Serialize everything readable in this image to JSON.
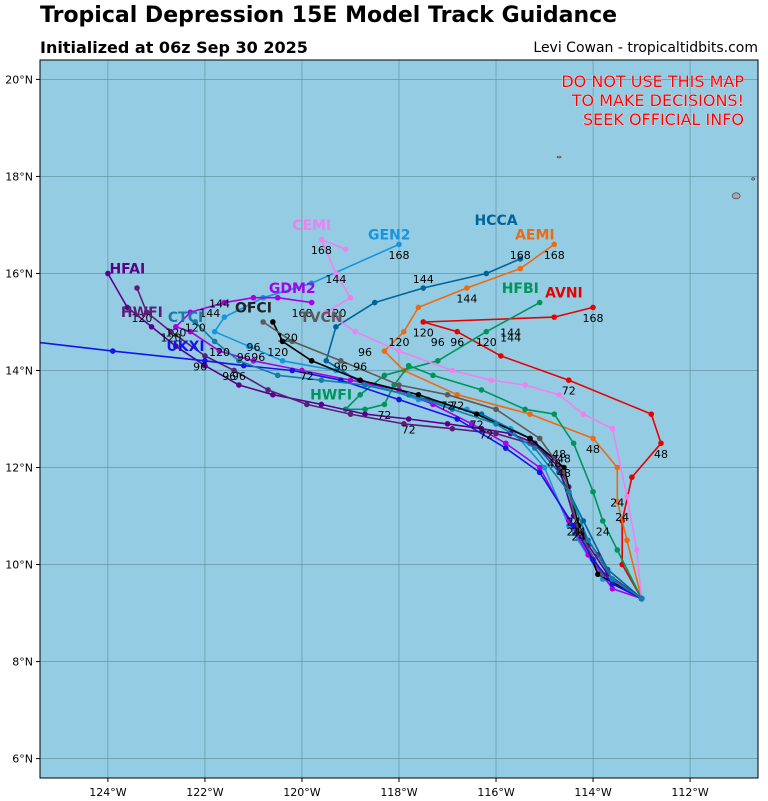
{
  "header": {
    "title": "Tropical Depression 15E Model Track Guidance",
    "subtitle": "Initialized at 06z Sep 30 2025",
    "credit": "Levi Cowan - tropicaltidbits.com"
  },
  "warning": [
    "DO NOT USE THIS MAP",
    "TO MAKE DECISIONS!",
    "SEEK OFFICIAL INFO"
  ],
  "colors": {
    "ocean": "#94cde3",
    "grid": "#5f8a9a",
    "land": "#a9a9a9",
    "warning": "#ff0000"
  },
  "chart_data": {
    "type": "line",
    "title": "Tropical Depression 15E Model Track Guidance",
    "xaxis": {
      "range": [
        -125.4,
        -110.6
      ],
      "ticks": [
        -124,
        -122,
        -120,
        -118,
        -116,
        -114,
        -112
      ],
      "tick_labels": [
        "124°W",
        "122°W",
        "120°W",
        "118°W",
        "116°W",
        "114°W",
        "112°W"
      ]
    },
    "yaxis": {
      "range": [
        5.6,
        20.4
      ],
      "ticks": [
        6,
        8,
        10,
        12,
        14,
        16,
        18,
        20
      ],
      "tick_labels": [
        "6°N",
        "8°N",
        "10°N",
        "12°N",
        "14°N",
        "16°N",
        "18°N",
        "20°N"
      ]
    },
    "grid": true,
    "series": [
      {
        "name": "AVNI",
        "color": "#e80000",
        "lon": [
          -113.0,
          -113.4,
          -113.4,
          -113.2,
          -112.6,
          -112.8,
          -114.5,
          -115.9,
          -116.8,
          -117.5,
          -114.8,
          -114.0
        ],
        "lat": [
          9.3,
          10.0,
          10.9,
          11.8,
          12.5,
          13.1,
          13.8,
          14.3,
          14.8,
          15.0,
          15.1,
          15.3
        ],
        "hour_labels": [
          {
            "t": "24",
            "lon": -113.4,
            "lat": 10.9
          },
          {
            "t": "48",
            "lon": -112.6,
            "lat": 12.2
          },
          {
            "t": "72",
            "lon": -114.5,
            "lat": 13.5
          },
          {
            "t": "96",
            "lon": -116.8,
            "lat": 14.5
          },
          {
            "t": "120",
            "lon": -117.5,
            "lat": 14.7
          },
          {
            "t": "144",
            "lon": -115.7,
            "lat": 14.7
          },
          {
            "t": "168",
            "lon": -114.0,
            "lat": 15.0
          }
        ]
      },
      {
        "name": "AEMI",
        "color": "#ee6a12",
        "lon": [
          -113.0,
          -113.3,
          -113.5,
          -113.5,
          -114.0,
          -115.3,
          -116.8,
          -117.9,
          -118.3,
          -117.9,
          -117.6,
          -116.6,
          -115.5,
          -114.8
        ],
        "lat": [
          9.3,
          10.5,
          11.3,
          12.0,
          12.6,
          13.1,
          13.5,
          14.0,
          14.4,
          14.8,
          15.3,
          15.7,
          16.1,
          16.6
        ],
        "hour_labels": [
          {
            "t": "24",
            "lon": -113.5,
            "lat": 11.2
          },
          {
            "t": "48",
            "lon": -114.0,
            "lat": 12.3
          },
          {
            "t": "120",
            "lon": -118.0,
            "lat": 14.5
          },
          {
            "t": "144",
            "lon": -116.6,
            "lat": 15.4
          },
          {
            "t": "168",
            "lon": -114.8,
            "lat": 16.3
          }
        ]
      },
      {
        "name": "HCCA",
        "color": "#00649a",
        "lon": [
          -113.0,
          -113.7,
          -114.2,
          -114.7,
          -115.3,
          -116.3,
          -117.4,
          -118.7,
          -119.5,
          -119.3,
          -118.5,
          -117.5,
          -116.2,
          -115.5
        ],
        "lat": [
          9.3,
          9.9,
          10.9,
          11.9,
          12.6,
          13.1,
          13.4,
          13.7,
          14.2,
          14.9,
          15.4,
          15.7,
          16.0,
          16.3
        ],
        "hour_labels": [
          {
            "t": "96",
            "lon": -118.7,
            "lat": 14.3
          },
          {
            "t": "120",
            "lon": -119.3,
            "lat": 15.1
          },
          {
            "t": "144",
            "lon": -117.5,
            "lat": 15.8
          },
          {
            "t": "168",
            "lon": -115.5,
            "lat": 16.3
          }
        ]
      },
      {
        "name": "GEN2",
        "color": "#1794e0",
        "lon": [
          -113.0,
          -113.8,
          -114.5,
          -115.0,
          -115.7,
          -116.6,
          -117.6,
          -118.5,
          -119.3,
          -120.4,
          -121.1,
          -121.8,
          -121.6,
          -120.8,
          -119.8,
          -118.0
        ],
        "lat": [
          9.3,
          9.7,
          10.8,
          12.0,
          12.8,
          13.2,
          13.4,
          13.7,
          14.0,
          14.2,
          14.5,
          14.8,
          15.1,
          15.5,
          15.8,
          16.6
        ],
        "hour_labels": [
          {
            "t": "96",
            "lon": -121.2,
            "lat": 14.2
          },
          {
            "t": "120",
            "lon": -122.2,
            "lat": 14.8
          },
          {
            "t": "144",
            "lon": -121.7,
            "lat": 15.3
          },
          {
            "t": "168",
            "lon": -118.0,
            "lat": 16.3
          }
        ]
      },
      {
        "name": "HFBI",
        "color": "#00945b",
        "lon": [
          -113.0,
          -113.5,
          -113.8,
          -114.0,
          -114.4,
          -114.8,
          -115.4,
          -116.3,
          -117.3,
          -117.8,
          -118.1,
          -118.3,
          -118.7,
          -119.1,
          -118.8,
          -118.3,
          -117.2,
          -116.2,
          -115.1
        ],
        "lat": [
          9.3,
          10.3,
          10.9,
          11.5,
          12.5,
          13.1,
          13.2,
          13.6,
          13.9,
          14.1,
          13.7,
          13.3,
          13.2,
          13.2,
          13.5,
          13.9,
          14.2,
          14.8,
          15.4
        ],
        "hour_labels": [
          {
            "t": "24",
            "lon": -113.8,
            "lat": 10.6
          },
          {
            "t": "72",
            "lon": -118.3,
            "lat": 13.0
          },
          {
            "t": "96",
            "lon": -117.2,
            "lat": 14.5
          },
          {
            "t": "120",
            "lon": -116.2,
            "lat": 14.5
          },
          {
            "t": "144",
            "lon": -115.7,
            "lat": 14.6
          }
        ]
      },
      {
        "name": "CEMI",
        "color": "#f080f0",
        "lon": [
          -113.0,
          -113.1,
          -113.3,
          -113.6,
          -114.2,
          -114.7,
          -115.4,
          -116.1,
          -116.9,
          -118.0,
          -118.9,
          -119.5,
          -119.0,
          -119.3,
          -119.6,
          -119.1
        ],
        "lat": [
          9.3,
          10.3,
          11.4,
          12.8,
          13.1,
          13.5,
          13.7,
          13.8,
          14.0,
          14.4,
          14.8,
          15.2,
          15.5,
          16.0,
          16.7,
          16.5
        ],
        "hour_labels": [
          {
            "t": "144",
            "lon": -119.3,
            "lat": 15.8
          },
          {
            "t": "168",
            "lon": -119.6,
            "lat": 16.4
          }
        ]
      },
      {
        "name": "GDM2",
        "color": "#a800e8",
        "lon": [
          -113.0,
          -113.6,
          -114.1,
          -114.5,
          -115.1,
          -115.8,
          -116.5,
          -117.3,
          -118.0,
          -119.0,
          -120.0,
          -121.0,
          -121.7,
          -122.3,
          -122.6,
          -122.3,
          -121.6,
          -121.0,
          -120.5,
          -119.8
        ],
        "lat": [
          9.3,
          9.5,
          10.2,
          10.9,
          12.0,
          12.5,
          12.9,
          13.3,
          13.6,
          13.8,
          14.0,
          14.2,
          14.4,
          14.8,
          14.9,
          15.2,
          15.4,
          15.5,
          15.5,
          15.4
        ],
        "hour_labels": [
          {
            "t": "96",
            "lon": -121.0,
            "lat": 14.4
          },
          {
            "t": "120",
            "lon": -122.7,
            "lat": 14.6
          },
          {
            "t": "144",
            "lon": -121.9,
            "lat": 15.1
          },
          {
            "t": "168",
            "lon": -120.0,
            "lat": 15.1
          }
        ]
      },
      {
        "name": "HFAI",
        "color": "#5a008c",
        "lon": [
          -113.0,
          -113.7,
          -114.1,
          -114.4,
          -114.7,
          -115.2,
          -115.7,
          -116.3,
          -117.0,
          -117.8,
          -118.7,
          -119.6,
          -120.6,
          -121.3,
          -122.0,
          -122.6,
          -123.1,
          -123.6,
          -124.0
        ],
        "lat": [
          9.3,
          9.8,
          10.4,
          11.0,
          12.0,
          12.5,
          12.7,
          12.8,
          12.9,
          13.0,
          13.1,
          13.3,
          13.5,
          13.7,
          14.1,
          14.5,
          14.9,
          15.3,
          16.0
        ],
        "hour_labels": [
          {
            "t": "24",
            "lon": -114.4,
            "lat": 10.8
          },
          {
            "t": "48",
            "lon": -114.7,
            "lat": 12.2
          },
          {
            "t": "72",
            "lon": -116.2,
            "lat": 12.6
          },
          {
            "t": "96",
            "lon": -121.3,
            "lat": 13.8
          },
          {
            "t": "120",
            "lon": -122.6,
            "lat": 14.7
          }
        ]
      },
      {
        "name": "HWFI",
        "color": "#5a1e78",
        "lon": [
          -113.0,
          -113.6,
          -113.9,
          -114.3,
          -114.5,
          -114.8,
          -115.3,
          -116.0,
          -116.9,
          -117.9,
          -119.0,
          -119.9,
          -120.7,
          -121.4,
          -122.0,
          -122.7,
          -123.2,
          -123.4
        ],
        "lat": [
          9.3,
          9.7,
          10.2,
          10.8,
          11.6,
          12.2,
          12.5,
          12.7,
          12.8,
          12.9,
          13.1,
          13.3,
          13.6,
          14.0,
          14.3,
          14.8,
          15.2,
          15.7
        ],
        "hour_labels": [
          {
            "t": "24",
            "lon": -114.4,
            "lat": 10.6
          },
          {
            "t": "48",
            "lon": -114.8,
            "lat": 12.0
          },
          {
            "t": "72",
            "lon": -117.8,
            "lat": 12.7
          },
          {
            "t": "96",
            "lon": -121.5,
            "lat": 13.8
          },
          {
            "t": "120",
            "lon": -123.3,
            "lat": 15.0
          }
        ]
      },
      {
        "name": "OFCI",
        "color": "#000000",
        "lon": [
          -113.0,
          -113.9,
          -114.3,
          -114.6,
          -115.3,
          -116.4,
          -117.6,
          -118.8,
          -119.8,
          -120.4,
          -120.6
        ],
        "lat": [
          9.3,
          9.8,
          10.8,
          12.0,
          12.6,
          13.1,
          13.5,
          13.8,
          14.2,
          14.6,
          15.0
        ],
        "hour_labels": [
          {
            "t": "24",
            "lon": -114.3,
            "lat": 10.6
          },
          {
            "t": "48",
            "lon": -114.6,
            "lat": 11.8
          },
          {
            "t": "72",
            "lon": -116.4,
            "lat": 12.8
          },
          {
            "t": "96",
            "lon": -118.8,
            "lat": 14.0
          },
          {
            "t": "120",
            "lon": -120.3,
            "lat": 14.6
          }
        ]
      },
      {
        "name": "TVCN",
        "color": "#5b5b5b",
        "lon": [
          -113.0,
          -113.8,
          -114.3,
          -114.6,
          -115.1,
          -116.0,
          -117.0,
          -118.0,
          -119.2,
          -120.2,
          -120.8
        ],
        "lat": [
          9.3,
          9.8,
          10.7,
          11.9,
          12.6,
          13.2,
          13.5,
          13.7,
          14.2,
          14.6,
          15.0
        ],
        "hour_labels": [
          {
            "t": "24",
            "lon": -114.3,
            "lat": 10.5
          },
          {
            "t": "48",
            "lon": -114.6,
            "lat": 12.1
          },
          {
            "t": "72",
            "lon": -117.0,
            "lat": 13.2
          },
          {
            "t": "96",
            "lon": -119.2,
            "lat": 14.0
          },
          {
            "t": "120",
            "lon": -120.5,
            "lat": 14.3
          }
        ]
      },
      {
        "name": "UKXI",
        "color": "#1414e8",
        "lon": [
          -113.0,
          -113.6,
          -114.0,
          -114.4,
          -115.1,
          -115.8,
          -116.8,
          -118.0,
          -119.2,
          -120.2,
          -121.2,
          -122.0,
          -123.9,
          -125.6
        ],
        "lat": [
          9.3,
          9.6,
          10.1,
          10.8,
          11.9,
          12.4,
          13.0,
          13.4,
          13.8,
          14.0,
          14.1,
          14.2,
          14.4,
          14.6
        ],
        "hour_labels": [
          {
            "t": "72",
            "lon": -116.8,
            "lat": 13.2
          },
          {
            "t": "96",
            "lon": -122.1,
            "lat": 14.0
          }
        ]
      },
      {
        "name": "CTCI",
        "color": "#0f7fa8",
        "lon": [
          -113.0,
          -113.6,
          -114.1,
          -114.5,
          -115.2,
          -116.0,
          -116.9,
          -117.8,
          -118.7,
          -119.6,
          -120.5,
          -121.3,
          -121.8,
          -122.2
        ],
        "lat": [
          9.3,
          9.7,
          10.5,
          11.5,
          12.4,
          12.9,
          13.2,
          13.5,
          13.7,
          13.8,
          13.9,
          14.2,
          14.6,
          15.0
        ],
        "hour_labels": [
          {
            "t": "72",
            "lon": -119.9,
            "lat": 13.8
          },
          {
            "t": "96",
            "lon": -120.9,
            "lat": 14.2
          },
          {
            "t": "120",
            "lon": -121.7,
            "lat": 14.3
          }
        ]
      }
    ],
    "model_labels": [
      {
        "t": "CEMI",
        "lon": -119.8,
        "lat": 16.9,
        "color": "#f080f0"
      },
      {
        "t": "GEN2",
        "lon": -118.2,
        "lat": 16.7,
        "color": "#1794e0"
      },
      {
        "t": "HCCA",
        "lon": -116.0,
        "lat": 17.0,
        "color": "#00649a"
      },
      {
        "t": "AEMI",
        "lon": -115.2,
        "lat": 16.7,
        "color": "#ee6a12"
      },
      {
        "t": "HFBI",
        "lon": -115.5,
        "lat": 15.6,
        "color": "#00945b"
      },
      {
        "t": "AVNI",
        "lon": -114.6,
        "lat": 15.5,
        "color": "#e80000"
      },
      {
        "t": "HFAI",
        "lon": -123.6,
        "lat": 16.0,
        "color": "#5a008c"
      },
      {
        "t": "GDM2",
        "lon": -120.2,
        "lat": 15.6,
        "color": "#a800e8"
      },
      {
        "t": "OFCI",
        "lon": -121.0,
        "lat": 15.2,
        "color": "#222222"
      },
      {
        "t": "TVCN",
        "lon": -119.6,
        "lat": 15.0,
        "color": "#5b5b5b"
      },
      {
        "t": "HWFI",
        "lon": -123.3,
        "lat": 15.1,
        "color": "#5a1e78"
      },
      {
        "t": "CTCI",
        "lon": -122.4,
        "lat": 15.0,
        "color": "#0f7fa8"
      },
      {
        "t": "UKXI",
        "lon": -122.4,
        "lat": 14.4,
        "color": "#1414e8"
      },
      {
        "t": "HWFI",
        "lon": -119.4,
        "lat": 13.4,
        "color": "#00945b"
      }
    ]
  }
}
